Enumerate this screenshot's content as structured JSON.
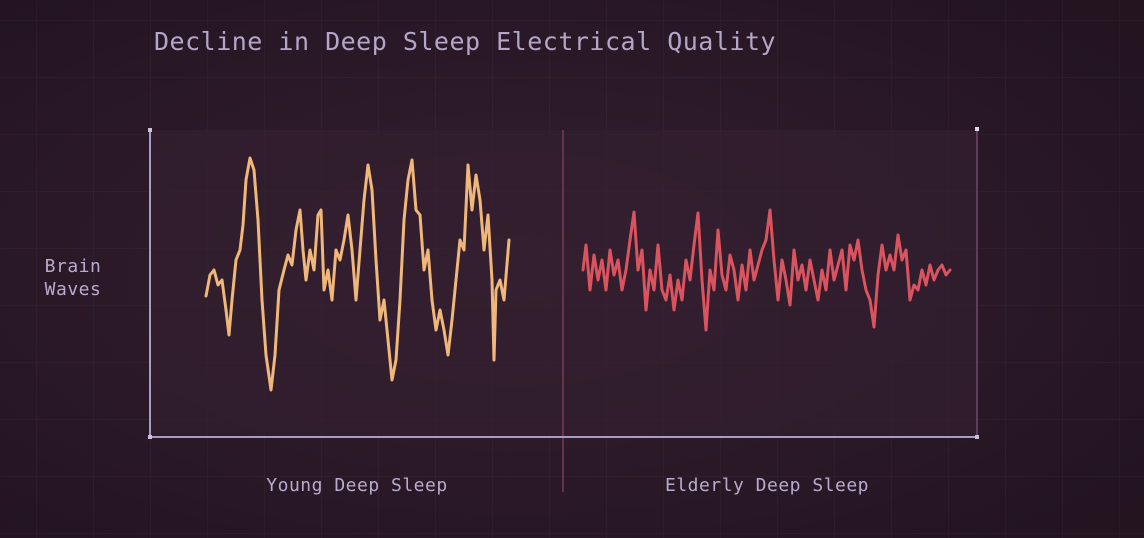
{
  "title": "Decline in Deep Sleep Electrical Quality",
  "y_label": [
    "Brain",
    "Waves"
  ],
  "sections": [
    "Young Deep Sleep",
    "Elderly Deep Sleep"
  ]
}
